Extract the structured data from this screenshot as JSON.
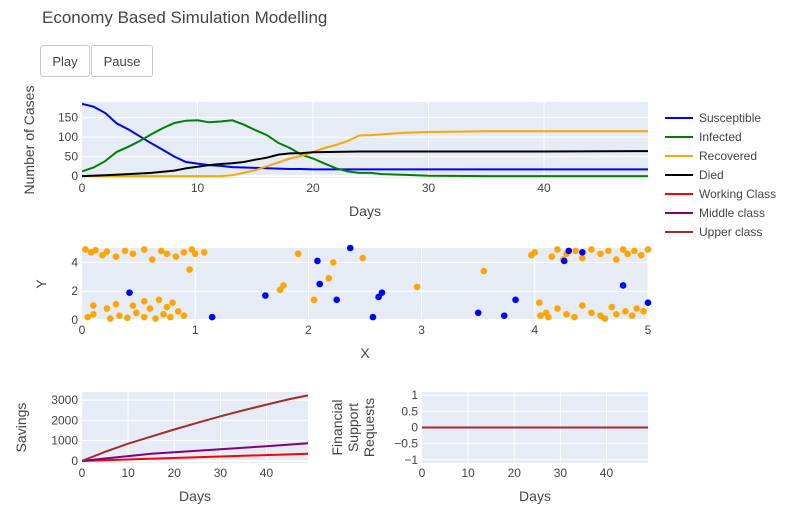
{
  "title": "Economy Based Simulation Modelling",
  "controls": {
    "play_label": "Play",
    "pause_label": "Pause"
  },
  "chart_data": [
    {
      "id": "cases",
      "type": "line",
      "xlabel": "Days",
      "ylabel": "Number of Cases",
      "xlim": [
        0,
        49
      ],
      "ylim": [
        -5,
        190
      ],
      "xticks": [
        0,
        10,
        20,
        30,
        40
      ],
      "yticks": [
        0,
        50,
        100,
        150
      ],
      "legend_position": "right",
      "series": [
        {
          "name": "Susceptible",
          "color": "#0000ff",
          "x": [
            0,
            1,
            2,
            3,
            4,
            5,
            6,
            7,
            8,
            9,
            10,
            11,
            12,
            13,
            14,
            15,
            16,
            17,
            18,
            19,
            20,
            22,
            25,
            30,
            40,
            49
          ],
          "y": [
            185,
            178,
            162,
            135,
            120,
            102,
            84,
            67,
            50,
            36,
            32,
            28,
            26,
            23,
            22,
            21,
            20,
            19,
            18,
            18,
            17,
            17,
            17,
            17,
            17,
            17
          ]
        },
        {
          "name": "Infected",
          "color": "#008000",
          "x": [
            0,
            1,
            2,
            3,
            4,
            5,
            6,
            7,
            8,
            9,
            10,
            11,
            12,
            13,
            14,
            15,
            16,
            17,
            18,
            19,
            20,
            21,
            22,
            23,
            24,
            25,
            26,
            28,
            30,
            35,
            40,
            49
          ],
          "y": [
            12,
            22,
            38,
            62,
            75,
            90,
            107,
            123,
            136,
            142,
            143,
            138,
            140,
            143,
            132,
            118,
            105,
            85,
            72,
            55,
            45,
            32,
            20,
            12,
            8,
            8,
            5,
            3,
            1,
            0,
            0,
            0
          ]
        },
        {
          "name": "Recovered",
          "color": "#ffa500",
          "x": [
            0,
            12,
            13,
            14,
            15,
            16,
            17,
            18,
            19,
            20,
            21,
            22,
            23,
            24,
            25,
            26,
            28,
            30,
            35,
            40,
            49
          ],
          "y": [
            0,
            0,
            2,
            8,
            15,
            25,
            35,
            45,
            52,
            62,
            72,
            80,
            90,
            104,
            105,
            107,
            111,
            113,
            115,
            115,
            115
          ]
        },
        {
          "name": "Died",
          "color": "#000000",
          "x": [
            0,
            2,
            4,
            6,
            8,
            9,
            10,
            11,
            12,
            13,
            14,
            15,
            16,
            17,
            18,
            19,
            20,
            22,
            24,
            30,
            40,
            49
          ],
          "y": [
            0,
            2,
            5,
            8,
            14,
            20,
            24,
            28,
            31,
            33,
            36,
            42,
            47,
            55,
            58,
            59,
            61,
            62,
            63,
            63,
            63,
            64
          ]
        }
      ],
      "legend_extra": [
        {
          "name": "Working Class",
          "color": "#ff0000"
        },
        {
          "name": "Middle class",
          "color": "#800080"
        },
        {
          "name": "Upper class",
          "color": "#a52a2a"
        }
      ]
    },
    {
      "id": "positions",
      "type": "scatter",
      "xlabel": "X",
      "ylabel": "Y",
      "xlim": [
        0,
        5
      ],
      "ylim": [
        0,
        5
      ],
      "xticks": [
        0,
        1,
        2,
        3,
        4,
        5
      ],
      "yticks": [
        0,
        2,
        4
      ],
      "series": [
        {
          "name": "Recovered",
          "color": "#ffa500",
          "points": [
            [
              0.03,
              4.9
            ],
            [
              0.08,
              4.7
            ],
            [
              0.12,
              4.85
            ],
            [
              0.18,
              4.5
            ],
            [
              0.22,
              4.75
            ],
            [
              0.3,
              4.4
            ],
            [
              0.38,
              4.8
            ],
            [
              0.45,
              4.6
            ],
            [
              0.55,
              4.9
            ],
            [
              0.62,
              4.2
            ],
            [
              0.7,
              4.8
            ],
            [
              0.75,
              4.6
            ],
            [
              0.83,
              4.4
            ],
            [
              0.9,
              4.7
            ],
            [
              0.97,
              4.9
            ],
            [
              1.0,
              4.6
            ],
            [
              1.08,
              4.7
            ],
            [
              0.95,
              3.5
            ],
            [
              0.05,
              0.2
            ],
            [
              0.1,
              0.4
            ],
            [
              0.25,
              0.1
            ],
            [
              0.33,
              0.3
            ],
            [
              0.4,
              0.15
            ],
            [
              0.48,
              0.5
            ],
            [
              0.55,
              0.2
            ],
            [
              0.6,
              0.8
            ],
            [
              0.65,
              0.1
            ],
            [
              0.72,
              0.4
            ],
            [
              0.78,
              0.2
            ],
            [
              0.85,
              0.6
            ],
            [
              0.9,
              0.3
            ],
            [
              0.1,
              1.0
            ],
            [
              0.22,
              0.8
            ],
            [
              0.3,
              1.1
            ],
            [
              0.45,
              1.0
            ],
            [
              0.55,
              1.3
            ],
            [
              0.68,
              1.4
            ],
            [
              0.75,
              0.9
            ],
            [
              0.8,
              1.2
            ],
            [
              1.75,
              2.1
            ],
            [
              1.78,
              2.4
            ],
            [
              1.91,
              4.6
            ],
            [
              2.05,
              1.4
            ],
            [
              2.18,
              2.9
            ],
            [
              2.22,
              4.0
            ],
            [
              2.48,
              4.3
            ],
            [
              2.96,
              2.3
            ],
            [
              3.55,
              3.4
            ],
            [
              4.0,
              4.7
            ],
            [
              4.05,
              0.3
            ],
            [
              4.1,
              0.5
            ],
            [
              4.12,
              0.2
            ],
            [
              4.2,
              0.8
            ],
            [
              4.28,
              0.4
            ],
            [
              4.35,
              0.2
            ],
            [
              4.42,
              1.0
            ],
            [
              4.5,
              0.5
            ],
            [
              4.58,
              0.3
            ],
            [
              4.62,
              0.1
            ],
            [
              4.68,
              0.9
            ],
            [
              4.72,
              0.4
            ],
            [
              4.8,
              0.6
            ],
            [
              4.86,
              0.3
            ],
            [
              4.9,
              0.8
            ],
            [
              4.96,
              0.6
            ],
            [
              4.04,
              1.2
            ],
            [
              4.2,
              4.9
            ],
            [
              4.28,
              4.6
            ],
            [
              4.36,
              4.8
            ],
            [
              4.42,
              4.3
            ],
            [
              4.5,
              4.9
            ],
            [
              4.58,
              4.6
            ],
            [
              4.65,
              4.8
            ],
            [
              4.72,
              4.2
            ],
            [
              4.78,
              4.9
            ],
            [
              4.82,
              4.6
            ],
            [
              4.88,
              4.8
            ],
            [
              4.94,
              4.5
            ],
            [
              5.0,
              4.9
            ],
            [
              4.15,
              4.4
            ],
            [
              3.97,
              4.5
            ],
            [
              4.25,
              4.2
            ]
          ]
        },
        {
          "name": "Susceptible",
          "color": "#0000ff",
          "points": [
            [
              0.42,
              1.9
            ],
            [
              1.15,
              0.2
            ],
            [
              1.62,
              1.7
            ],
            [
              2.08,
              4.1
            ],
            [
              2.1,
              2.5
            ],
            [
              2.25,
              1.4
            ],
            [
              2.37,
              5.0
            ],
            [
              2.57,
              0.2
            ],
            [
              2.62,
              1.6
            ],
            [
              2.65,
              1.9
            ],
            [
              3.5,
              0.5
            ],
            [
              3.73,
              0.3
            ],
            [
              3.83,
              1.4
            ],
            [
              4.26,
              4.1
            ],
            [
              4.3,
              4.8
            ],
            [
              4.42,
              4.7
            ],
            [
              4.78,
              2.4
            ],
            [
              5.0,
              1.2
            ]
          ]
        }
      ]
    },
    {
      "id": "savings",
      "type": "line",
      "xlabel": "Days",
      "ylabel": "Savings",
      "xlim": [
        0,
        49
      ],
      "ylim": [
        -100,
        3400
      ],
      "xticks": [
        0,
        10,
        20,
        30,
        40
      ],
      "yticks": [
        0,
        1000,
        2000,
        3000
      ],
      "series": [
        {
          "name": "Working Class",
          "color": "#ff0000",
          "x": [
            0,
            49
          ],
          "y": [
            0,
            360
          ]
        },
        {
          "name": "Middle class",
          "color": "#800080",
          "x": [
            0,
            5,
            10,
            15,
            20,
            30,
            40,
            49
          ],
          "y": [
            0,
            120,
            240,
            360,
            430,
            580,
            730,
            870
          ]
        },
        {
          "name": "Upper class",
          "color": "#a52a2a",
          "x": [
            0,
            5,
            10,
            15,
            20,
            25,
            30,
            35,
            40,
            45,
            49
          ],
          "y": [
            0,
            450,
            850,
            1200,
            1550,
            1880,
            2200,
            2500,
            2780,
            3050,
            3230
          ]
        }
      ]
    },
    {
      "id": "support",
      "type": "line",
      "xlabel": "Days",
      "ylabel": "Financial Support Requests",
      "ylabel_lines": [
        "Financial",
        "Support",
        "Requests"
      ],
      "xlim": [
        0,
        49
      ],
      "ylim": [
        -1.1,
        1.1
      ],
      "xticks": [
        0,
        10,
        20,
        30,
        40
      ],
      "yticks": [
        1,
        0.5,
        0,
        -0.5,
        -1
      ],
      "ytick_labels": [
        "1",
        "0.5",
        "0",
        "−0.5",
        "−1"
      ],
      "series": [
        {
          "name": "Working Class",
          "color": "#ff0000",
          "x": [
            0,
            49
          ],
          "y": [
            0,
            0
          ]
        },
        {
          "name": "Middle class",
          "color": "#800080",
          "x": [
            0,
            49
          ],
          "y": [
            0,
            0
          ]
        },
        {
          "name": "Upper class",
          "color": "#a52a2a",
          "x": [
            0,
            49
          ],
          "y": [
            0,
            0
          ]
        }
      ]
    }
  ]
}
